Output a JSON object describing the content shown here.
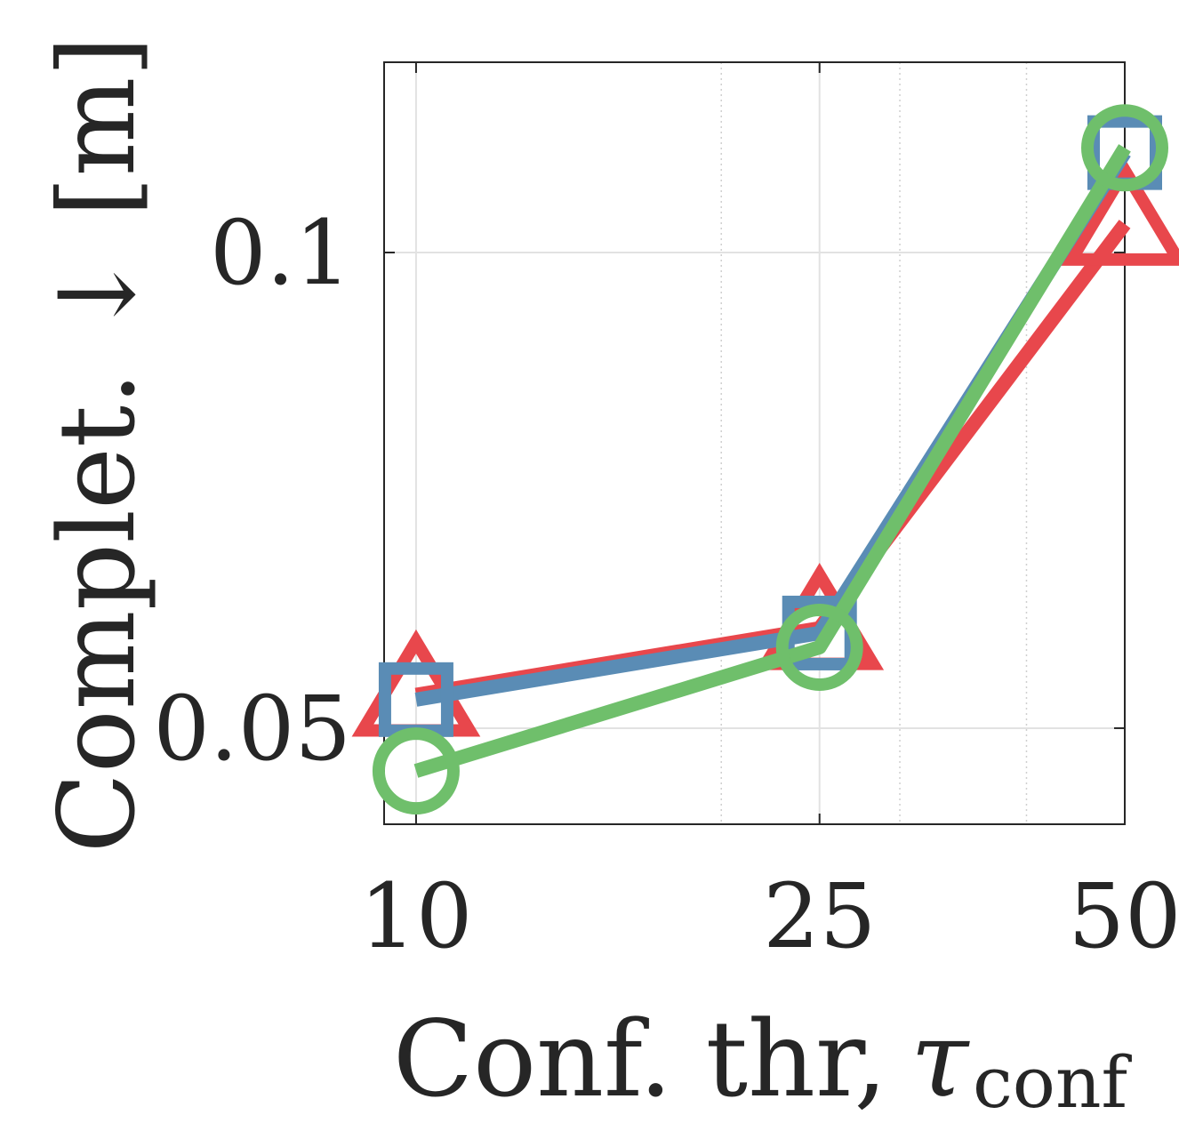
{
  "chart_data": {
    "type": "line",
    "x_scale": "log",
    "x": [
      10,
      25,
      50
    ],
    "x_ticks": [
      "10",
      "25",
      "50"
    ],
    "xlim": [
      9.3,
      50
    ],
    "ylim": [
      0.0399,
      0.12
    ],
    "y_ticks": [
      "0.05",
      "0.1"
    ],
    "xlabel": "Conf. thr,",
    "xlabel_symbol": "τ",
    "xlabel_subscript": "conf",
    "ylabel": "Complet. ↓ [m]",
    "grid": true,
    "series": [
      {
        "values": [
          0.0535,
          0.0605,
          0.103
        ],
        "color": "#E8474C",
        "marker": "triangle"
      },
      {
        "values": [
          0.053,
          0.06,
          0.1105
        ],
        "color": "#5A8CB5",
        "marker": "square"
      },
      {
        "values": [
          0.0455,
          0.0585,
          0.111
        ],
        "color": "#6FBF6B",
        "marker": "circle"
      }
    ]
  }
}
